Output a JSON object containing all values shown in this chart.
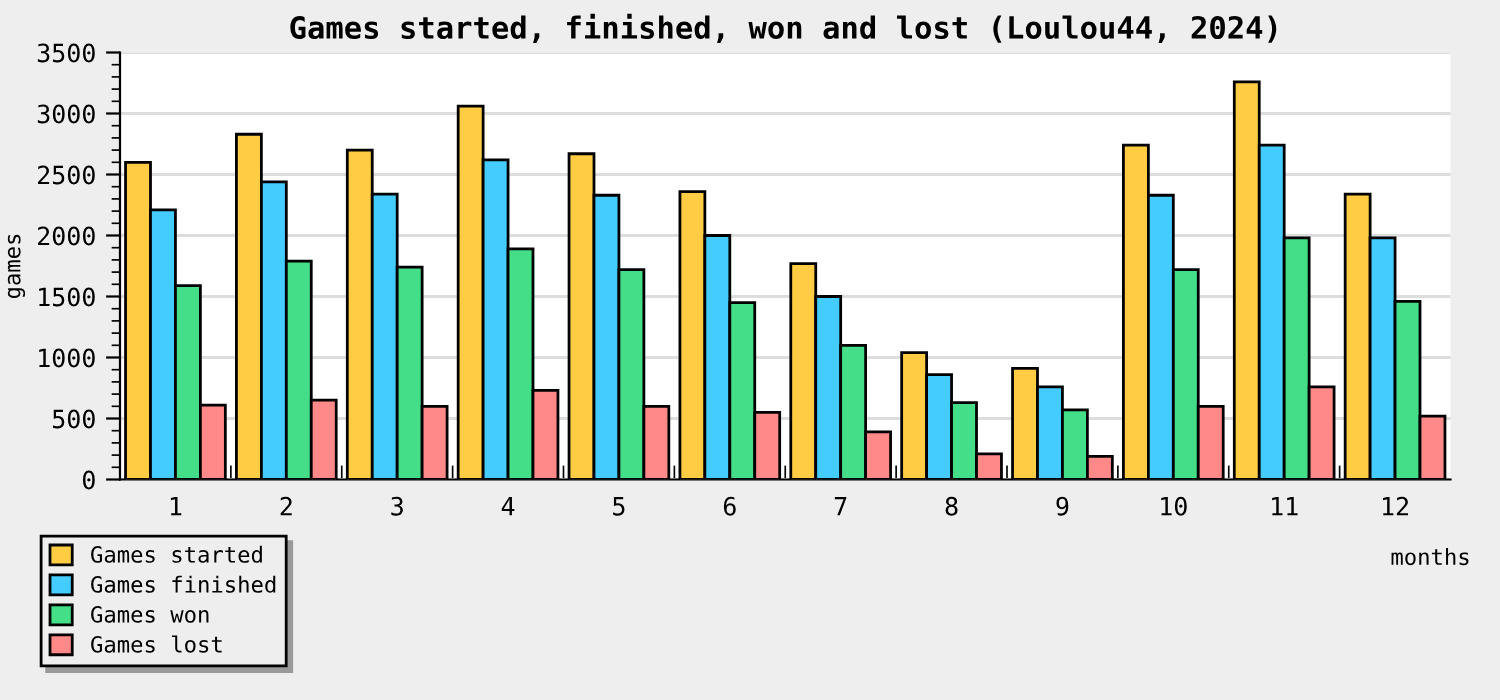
{
  "chart_data": {
    "type": "bar",
    "title": "Games started, finished, won and lost (Loulou44, 2024)",
    "xlabel": "months",
    "ylabel": "games",
    "categories": [
      "1",
      "2",
      "3",
      "4",
      "5",
      "6",
      "7",
      "8",
      "9",
      "10",
      "11",
      "12"
    ],
    "series": [
      {
        "name": "Games started",
        "color": "#ffcc44",
        "values": [
          2600,
          2830,
          2700,
          3060,
          2670,
          2360,
          1770,
          1040,
          910,
          2740,
          3260,
          2340
        ]
      },
      {
        "name": "Games finished",
        "color": "#44ccff",
        "values": [
          2210,
          2440,
          2340,
          2620,
          2330,
          2000,
          1500,
          860,
          760,
          2330,
          2740,
          1980
        ]
      },
      {
        "name": "Games won",
        "color": "#44dd88",
        "values": [
          1590,
          1790,
          1740,
          1890,
          1720,
          1450,
          1100,
          630,
          570,
          1720,
          1980,
          1460
        ]
      },
      {
        "name": "Games lost",
        "color": "#ff8888",
        "values": [
          610,
          650,
          600,
          730,
          600,
          550,
          390,
          210,
          190,
          600,
          760,
          520
        ]
      }
    ],
    "ylim": [
      0,
      3500
    ],
    "yticks": [
      0,
      500,
      1000,
      1500,
      2000,
      2500,
      3000,
      3500
    ],
    "grid": "y",
    "legend": "bottom left"
  }
}
